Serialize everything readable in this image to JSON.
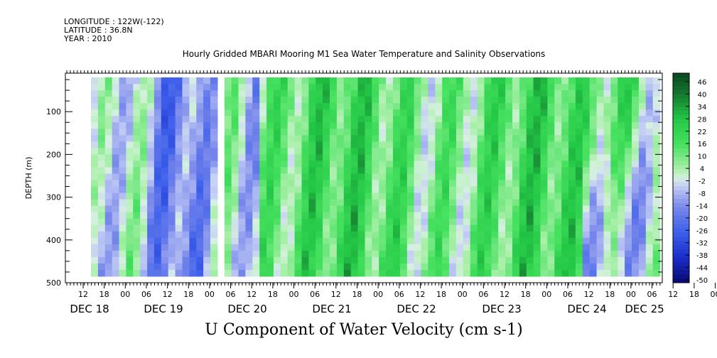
{
  "header": {
    "longitude": "LONGITUDE : 122W(-122)",
    "latitude": "LATITUDE : 36.8N",
    "year": "YEAR : 2010"
  },
  "chart_data": {
    "type": "heatmap",
    "title": "Hourly Gridded MBARI Mooring M1 Sea Water Temperature and Salinity Observations",
    "xlabel": "",
    "ylabel": "DEPTH (m)",
    "variable_label": "U Component of Water Velocity (cm s-1)",
    "ylim": [
      500,
      10
    ],
    "y_ticks": [
      100,
      200,
      300,
      400,
      500
    ],
    "x_hour_ticks": [
      "12",
      "18",
      "00",
      "06",
      "12",
      "18",
      "00",
      "06",
      "12",
      "18",
      "00",
      "06",
      "12",
      "18",
      "00",
      "06",
      "12",
      "18",
      "00",
      "06",
      "12",
      "18",
      "00",
      "06",
      "12",
      "18",
      "00",
      "06",
      "12",
      "18",
      "00",
      "06",
      "12",
      "18",
      "00",
      "06"
    ],
    "x_hour_start": "DEC 17 12:00",
    "x_day_labels": [
      "DEC 18",
      "DEC 19",
      "DEC 20",
      "DEC 21",
      "DEC 22",
      "DEC 23",
      "DEC 24",
      "DEC 25"
    ],
    "colorbar": {
      "labels": [
        "46",
        "40",
        "34",
        "28",
        "22",
        "16",
        "10",
        "4",
        "-2",
        "-8",
        "-14",
        "-20",
        "-26",
        "-32",
        "-38",
        "-44",
        "-50"
      ],
      "min": -50,
      "max": 50
    },
    "data_description_time_range": [
      "DEC 17 12:00",
      "DEC 25 08:00"
    ],
    "data_depth_range": [
      20,
      485
    ],
    "colors": {
      "strong_negative": "#080870",
      "negative": "#3a5ee6",
      "weak_negative": "#8c9cec",
      "near_zero": "#c9d4f4",
      "weak_positive": "#a8f0a8",
      "positive": "#3ce25a",
      "strong_positive": "#0f5a25"
    }
  }
}
